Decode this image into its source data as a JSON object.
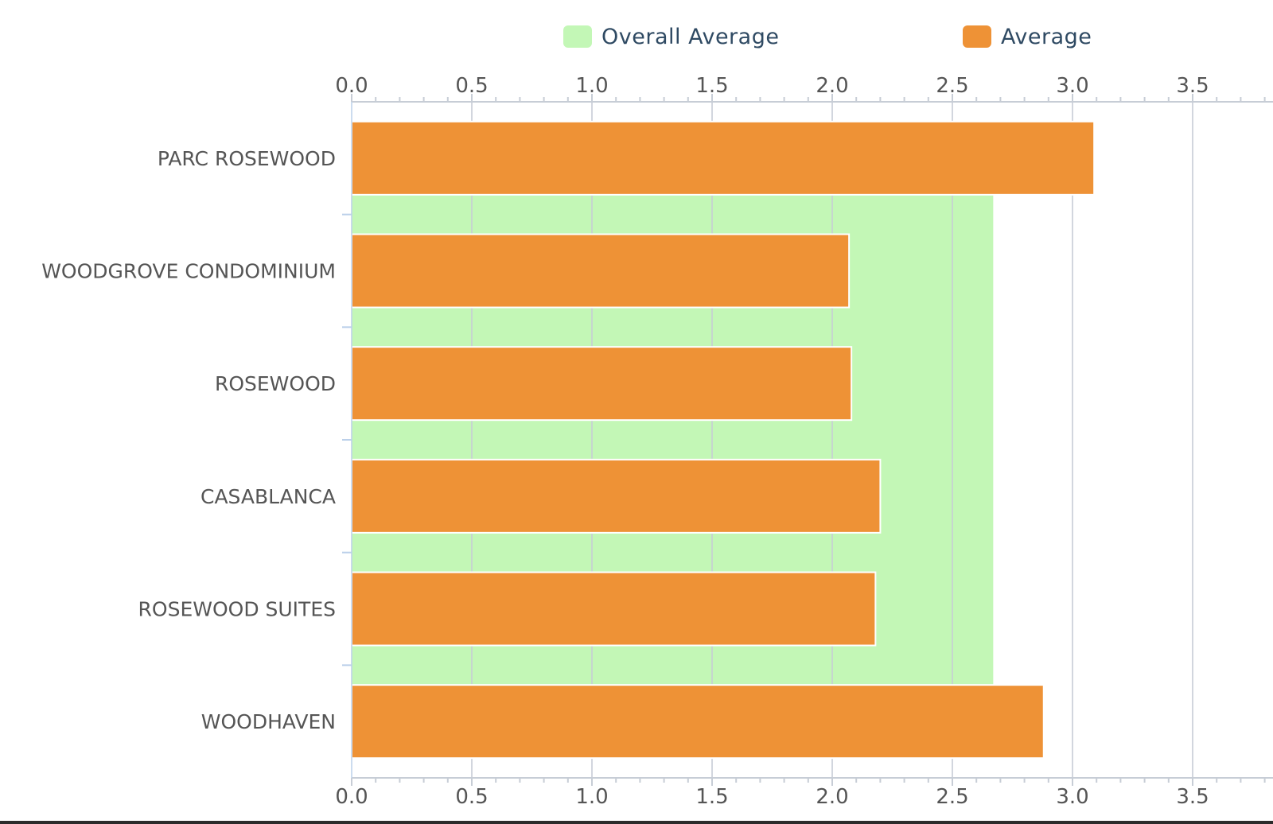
{
  "legend": {
    "overall_label": "Overall Average",
    "average_label": "Average"
  },
  "colors": {
    "overall_fill": "#c3f7b6",
    "average_fill": "#ee9236",
    "grid": "#c7cdd6",
    "axis_text": "#555555",
    "legend_text": "#2f4a63"
  },
  "chart_data": {
    "type": "bar",
    "orientation": "horizontal",
    "categories": [
      "PARC ROSEWOOD",
      "WOODGROVE CONDOMINIUM",
      "ROSEWOOD",
      "CASABLANCA",
      "ROSEWOOD SUITES",
      "WOODHAVEN"
    ],
    "series": [
      {
        "name": "Average",
        "values": [
          3.09,
          2.07,
          2.08,
          2.2,
          2.18,
          2.88
        ]
      },
      {
        "name": "Overall Average",
        "values": [
          2.67,
          2.67,
          2.67,
          2.67,
          2.67,
          2.67
        ]
      }
    ],
    "xlim": [
      0,
      3.8
    ],
    "ticks": [
      "0.0",
      "0.5",
      "1.0",
      "1.5",
      "2.0",
      "2.5",
      "3.0",
      "3.5"
    ],
    "grid": true,
    "legend_position": "top"
  }
}
